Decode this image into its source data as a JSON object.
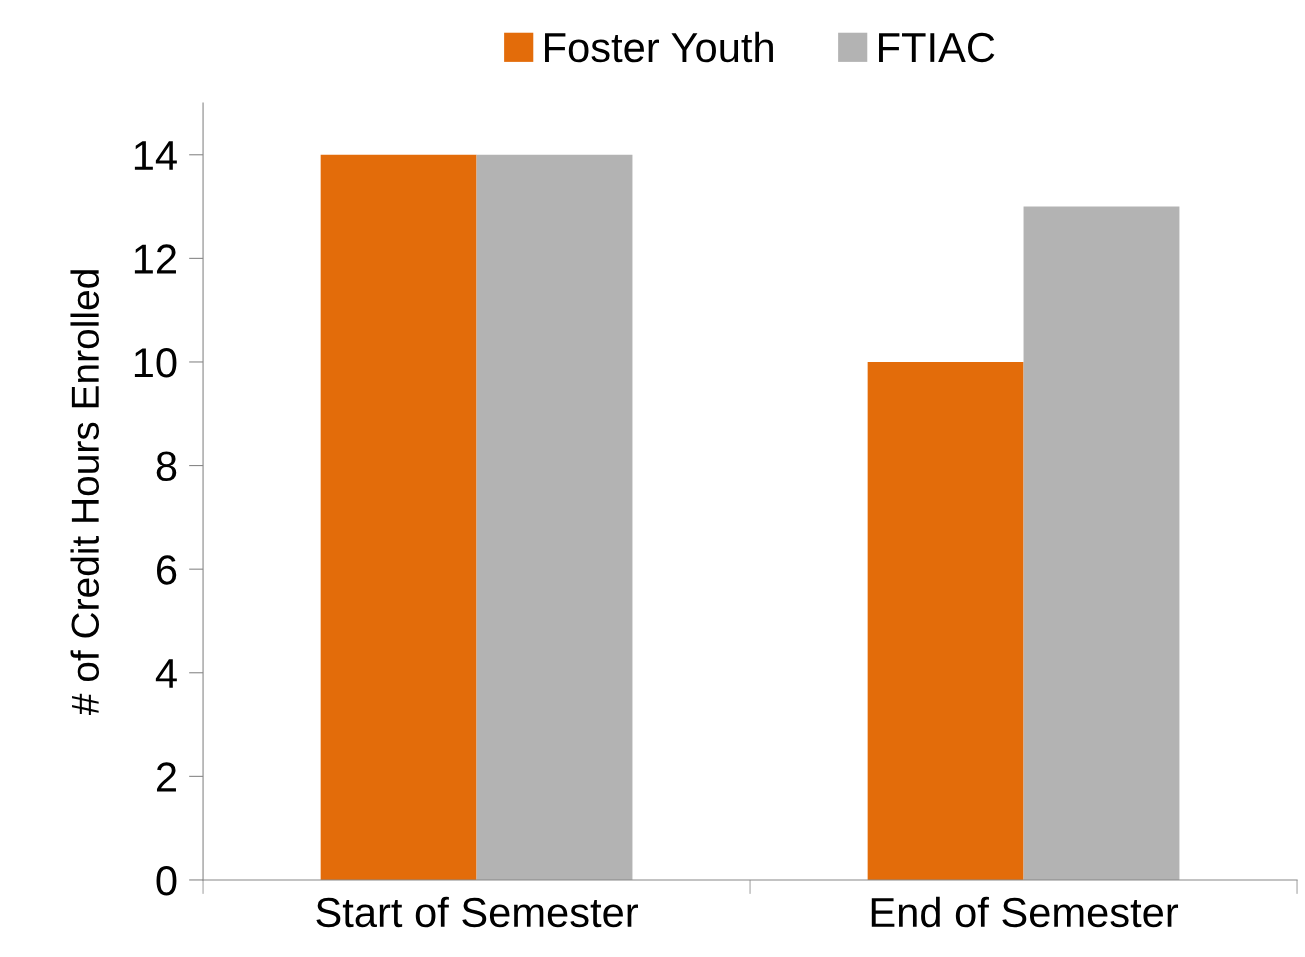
{
  "chart_data": {
    "type": "bar",
    "ylabel": "# of Credit Hours Enrolled",
    "categories": [
      "Start of Semester",
      "End of Semester"
    ],
    "series": [
      {
        "name": "Foster Youth",
        "color": "#e36c0a",
        "values": [
          14,
          10
        ]
      },
      {
        "name": "FTIAC",
        "color": "#b3b3b3",
        "values": [
          14,
          13
        ]
      }
    ],
    "ylim": [
      0,
      15
    ],
    "yticks": [
      0,
      2,
      4,
      6,
      8,
      10,
      12,
      14
    ],
    "grid": false,
    "legend": "top"
  }
}
